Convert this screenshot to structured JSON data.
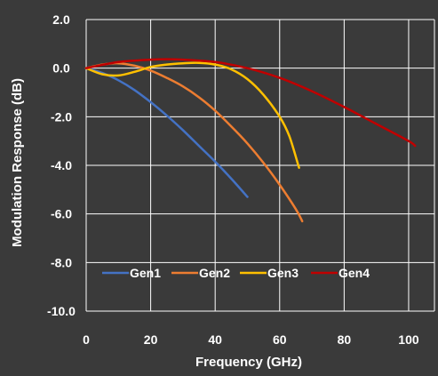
{
  "colors": {
    "background": "#3a3a3a",
    "plot_background": "#3a3a3a",
    "grid": "#ffffff",
    "text": "#ffffff"
  },
  "chart_data": {
    "type": "line",
    "title": "",
    "xlabel": "Frequency (GHz)",
    "ylabel": "Modulation Response (dB)",
    "xlim": [
      0,
      108
    ],
    "ylim": [
      -10,
      2
    ],
    "xticks": [
      0,
      20,
      40,
      60,
      80,
      100
    ],
    "yticks": [
      2,
      0,
      -2,
      -4,
      -6,
      -8,
      -10
    ],
    "xtick_labels": [
      "0",
      "20",
      "40",
      "60",
      "80",
      "100"
    ],
    "ytick_labels": [
      "2.0",
      "0.0",
      "-2.0",
      "-4.0",
      "-6.0",
      "-8.0",
      "-10.0"
    ],
    "grid": true,
    "legend_position": "bottom-inside",
    "series": [
      {
        "name": "Gen1",
        "color": "#4472c4",
        "x": [
          0,
          5,
          10,
          15,
          20,
          25,
          30,
          35,
          40,
          45,
          50
        ],
        "y": [
          0,
          -0.2,
          -0.5,
          -0.9,
          -1.4,
          -1.95,
          -2.55,
          -3.2,
          -3.85,
          -4.55,
          -5.3
        ]
      },
      {
        "name": "Gen2",
        "color": "#ed7d31",
        "x": [
          0,
          5,
          10,
          15,
          20,
          25,
          30,
          35,
          40,
          45,
          50,
          55,
          60,
          65,
          67
        ],
        "y": [
          0,
          0.15,
          0.2,
          0.1,
          -0.1,
          -0.4,
          -0.75,
          -1.2,
          -1.75,
          -2.4,
          -3.1,
          -3.9,
          -4.8,
          -5.8,
          -6.3
        ]
      },
      {
        "name": "Gen3",
        "color": "#ffc000",
        "x": [
          0,
          5,
          10,
          15,
          20,
          25,
          30,
          35,
          40,
          45,
          50,
          55,
          60,
          63,
          66
        ],
        "y": [
          0,
          -0.25,
          -0.3,
          -0.15,
          0.05,
          0.15,
          0.2,
          0.22,
          0.15,
          -0.05,
          -0.45,
          -1.1,
          -2.0,
          -2.8,
          -4.1
        ]
      },
      {
        "name": "Gen4",
        "color": "#c00000",
        "x": [
          0,
          10,
          20,
          25,
          30,
          40,
          50,
          60,
          70,
          80,
          90,
          100,
          102
        ],
        "y": [
          0,
          0.25,
          0.35,
          0.37,
          0.35,
          0.25,
          0.0,
          -0.4,
          -0.95,
          -1.6,
          -2.3,
          -3.0,
          -3.2
        ]
      }
    ]
  }
}
